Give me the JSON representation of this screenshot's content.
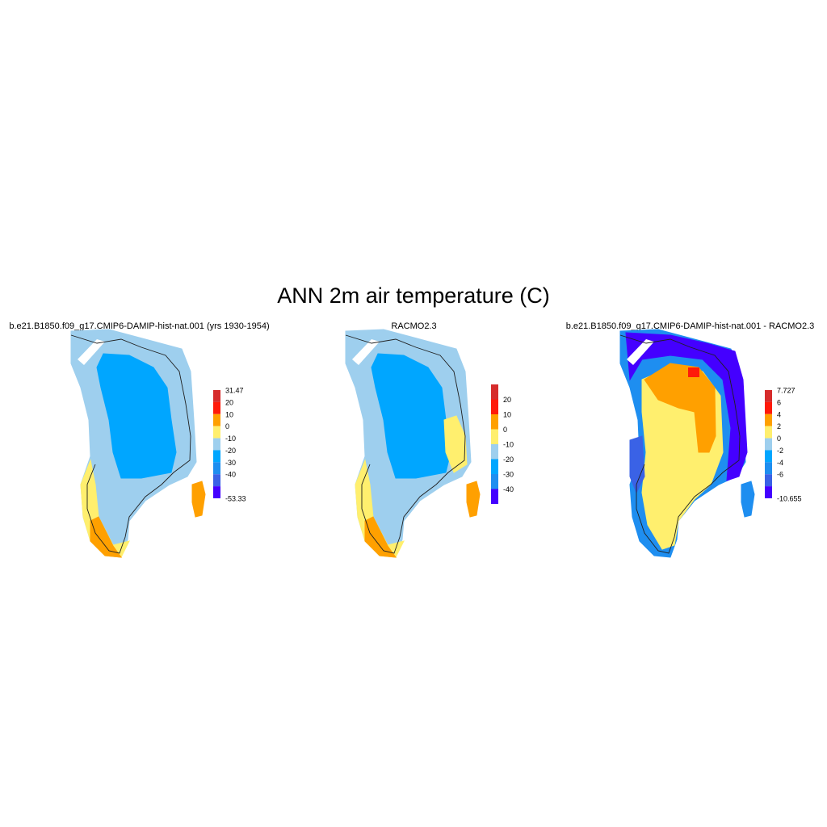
{
  "title": "ANN 2m air temperature (C)",
  "colors": {
    "deep_purple": "#4400ff",
    "royal_blue": "#3a62e6",
    "mid_blue": "#1e8ef0",
    "sky_blue": "#00a6ff",
    "light_blue": "#9ecfee",
    "pale_yellow": "#ffef6e",
    "orange": "#ffa000",
    "red": "#ff1a0a",
    "dark_red": "#d62c2c",
    "coast_line": "#202020"
  },
  "panels": [
    {
      "title": "b.e21.B1850.f09_g17.CMIP6-DAMIP-hist-nat.001 (yrs 1930-1954)",
      "colorbar": {
        "labels": [
          "31.47",
          "20",
          "10",
          "0",
          "-10",
          "-20",
          "-30",
          "-40",
          "-53.33"
        ],
        "colors": [
          "dark_red",
          "red",
          "orange",
          "pale_yellow",
          "light_blue",
          "sky_blue",
          "mid_blue",
          "royal_blue",
          "deep_purple"
        ]
      }
    },
    {
      "title": "RACMO2.3",
      "colorbar": {
        "labels": [
          "20",
          "10",
          "0",
          "-10",
          "-20",
          "-30",
          "-40"
        ],
        "colors": [
          "dark_red",
          "red",
          "orange",
          "pale_yellow",
          "light_blue",
          "sky_blue",
          "mid_blue",
          "deep_purple"
        ]
      }
    },
    {
      "title": "b.e21.B1850.f09_g17.CMIP6-DAMIP-hist-nat.001 - RACMO2.3",
      "colorbar": {
        "labels": [
          "7.727",
          "6",
          "4",
          "2",
          "0",
          "-2",
          "-4",
          "-6",
          "-10.655"
        ],
        "colors": [
          "dark_red",
          "red",
          "orange",
          "pale_yellow",
          "light_blue",
          "sky_blue",
          "mid_blue",
          "royal_blue",
          "deep_purple"
        ]
      }
    }
  ]
}
